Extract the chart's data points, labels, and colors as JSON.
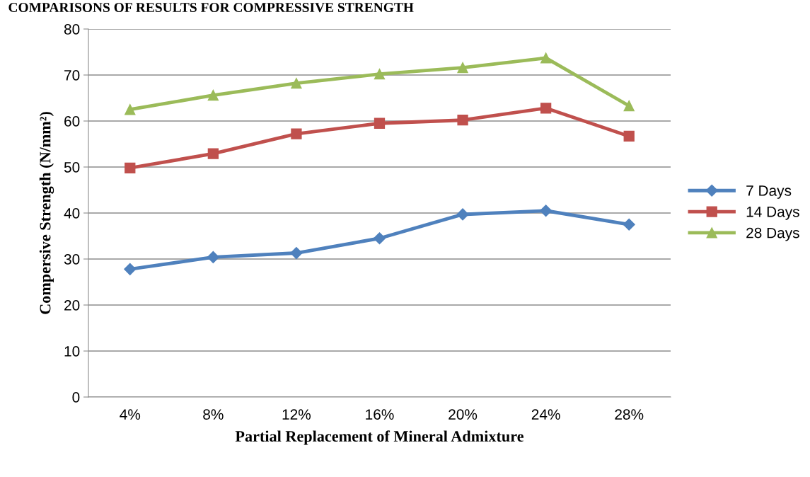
{
  "chart_data": {
    "type": "line",
    "title": "COMPARISONS OF RESULTS FOR COMPRESSIVE STRENGTH",
    "xlabel": "Partial Replacement of Mineral Admixture",
    "ylabel": "Compersive Strength (N/mm²)",
    "categories": [
      "4%",
      "8%",
      "12%",
      "16%",
      "20%",
      "24%",
      "28%"
    ],
    "series": [
      {
        "name": "7 Days",
        "color": "#4f81bd",
        "marker": "diamond",
        "values": [
          27.8,
          30.4,
          31.3,
          34.5,
          39.7,
          40.5,
          37.5
        ]
      },
      {
        "name": "14 Days",
        "color": "#c0504d",
        "marker": "square",
        "values": [
          49.8,
          52.9,
          57.2,
          59.5,
          60.2,
          62.8,
          56.7
        ]
      },
      {
        "name": "28 Days",
        "color": "#9bbb59",
        "marker": "triangle",
        "values": [
          62.5,
          65.6,
          68.2,
          70.2,
          71.6,
          73.7,
          63.3
        ]
      }
    ],
    "ylim": [
      0,
      80
    ],
    "yticks": [
      0,
      10,
      20,
      30,
      40,
      50,
      60,
      70,
      80
    ],
    "grid": "y",
    "legend": "right",
    "line_style": "solid"
  }
}
